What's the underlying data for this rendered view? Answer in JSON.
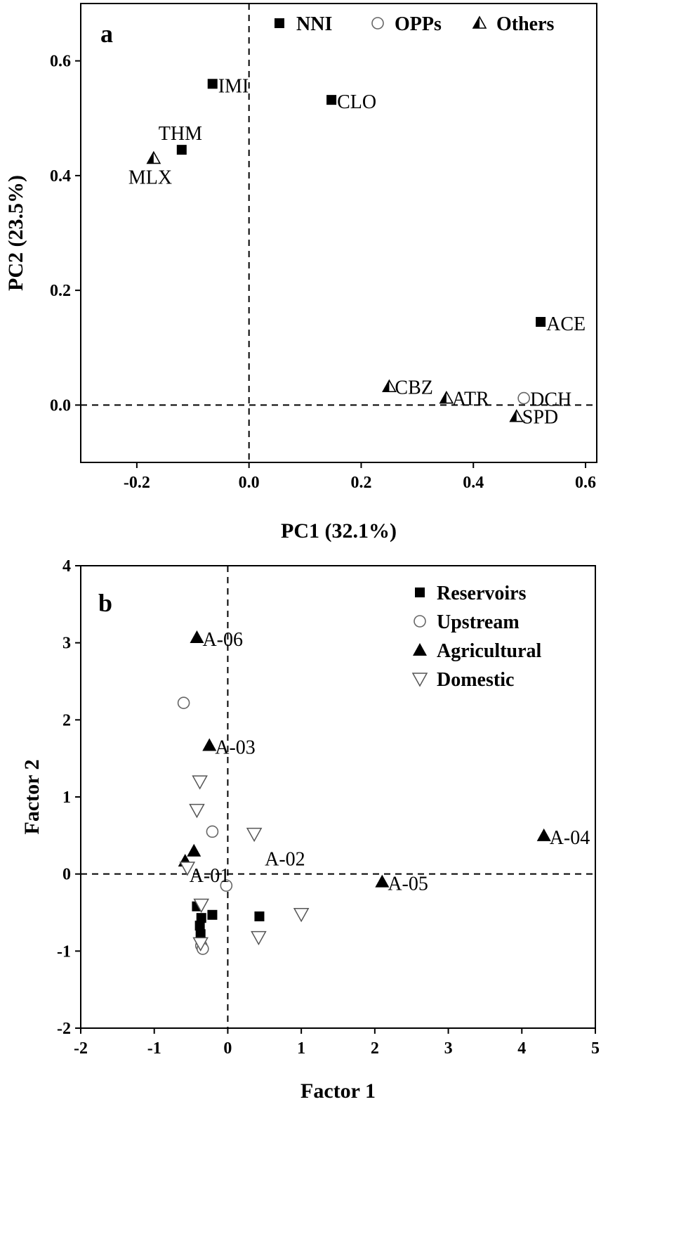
{
  "colors": {
    "filled": "#000000",
    "hollow_stroke": "#000000",
    "domestic_stroke": "#555555",
    "upstream_stroke": "#666666"
  },
  "chart_data": [
    {
      "type": "scatter",
      "panel_letter": "a",
      "xlabel": "PC1 (32.1%)",
      "ylabel": "PC2 (23.5%)",
      "xlim": [
        -0.3,
        0.62
      ],
      "ylim": [
        -0.1,
        0.7
      ],
      "xticks": [
        -0.2,
        0.0,
        0.2,
        0.4,
        0.6
      ],
      "xtick_labels": [
        "-0.2",
        "0.0",
        "0.2",
        "0.4",
        "0.6"
      ],
      "yticks": [
        0.0,
        0.2,
        0.4,
        0.6
      ],
      "ytick_labels": [
        "0.0",
        "0.2",
        "0.4",
        "0.6"
      ],
      "reference_lines": {
        "x": 0,
        "y": 0,
        "style": "dashed"
      },
      "legend_position": "top",
      "grid": false,
      "series": [
        {
          "name": "NNI",
          "marker": "square-filled",
          "points": [
            {
              "label": "IMI",
              "x": -0.065,
              "y": 0.56
            },
            {
              "label": "CLO",
              "x": 0.147,
              "y": 0.532
            },
            {
              "label": "THM",
              "x": -0.12,
              "y": 0.445
            },
            {
              "label": "ACE",
              "x": 0.52,
              "y": 0.145
            }
          ]
        },
        {
          "name": "OPPs",
          "marker": "circle-open",
          "points": [
            {
              "label": "DCH",
              "x": 0.49,
              "y": 0.012
            }
          ]
        },
        {
          "name": "Others",
          "marker": "triangle-half",
          "points": [
            {
              "label": "MLX",
              "x": -0.17,
              "y": 0.43
            },
            {
              "label": "CBZ",
              "x": 0.25,
              "y": 0.032
            },
            {
              "label": "ATR",
              "x": 0.352,
              "y": 0.012
            },
            {
              "label": "SPD",
              "x": 0.477,
              "y": -0.02
            }
          ]
        }
      ]
    },
    {
      "type": "scatter",
      "panel_letter": "b",
      "xlabel": "Factor 1",
      "ylabel": "Factor 2",
      "xlim": [
        -2,
        5
      ],
      "ylim": [
        -2,
        4
      ],
      "xticks": [
        -2,
        -1,
        0,
        1,
        2,
        3,
        4,
        5
      ],
      "xtick_labels": [
        "-2",
        "-1",
        "0",
        "1",
        "2",
        "3",
        "4",
        "5"
      ],
      "yticks": [
        -2,
        -1,
        0,
        1,
        2,
        3,
        4
      ],
      "ytick_labels": [
        "-2",
        "-1",
        "0",
        "1",
        "2",
        "3",
        "4"
      ],
      "reference_lines": {
        "x": 0,
        "y": 0,
        "style": "dashed"
      },
      "legend_position": "top-right",
      "grid": false,
      "series": [
        {
          "name": "Reservoirs",
          "marker": "square-filled",
          "points": [
            {
              "x": -0.42,
              "y": -0.42
            },
            {
              "x": -0.36,
              "y": -0.57
            },
            {
              "x": -0.21,
              "y": -0.53
            },
            {
              "x": -0.38,
              "y": -0.67
            },
            {
              "x": -0.37,
              "y": -0.78
            },
            {
              "x": 0.43,
              "y": -0.55
            }
          ]
        },
        {
          "name": "Upstream",
          "marker": "circle-open",
          "points": [
            {
              "x": -0.6,
              "y": 2.22
            },
            {
              "x": -0.21,
              "y": 0.55
            },
            {
              "x": -0.02,
              "y": -0.15
            },
            {
              "x": -0.36,
              "y": -0.93
            },
            {
              "x": -0.34,
              "y": -0.97
            }
          ]
        },
        {
          "name": "Agricultural",
          "marker": "triangle-filled",
          "points": [
            {
              "label": "A-06",
              "x": -0.42,
              "y": 3.07
            },
            {
              "label": "A-03",
              "x": -0.25,
              "y": 1.67
            },
            {
              "x": -0.46,
              "y": 0.3
            },
            {
              "label": "A-01",
              "x": -0.58,
              "y": 0.17
            },
            {
              "label": "A-05",
              "x": 2.1,
              "y": -0.1
            },
            {
              "label": "A-04",
              "x": 4.3,
              "y": 0.5
            }
          ]
        },
        {
          "name": "Domestic",
          "marker": "triangle-down-open",
          "points": [
            {
              "x": -0.38,
              "y": 1.2
            },
            {
              "x": -0.42,
              "y": 0.83
            },
            {
              "label": "A-02",
              "x": 0.36,
              "y": 0.52
            },
            {
              "x": -0.55,
              "y": 0.08
            },
            {
              "x": -0.36,
              "y": -0.4
            },
            {
              "x": -0.37,
              "y": -0.9
            },
            {
              "x": 0.42,
              "y": -0.82
            },
            {
              "x": 1.0,
              "y": -0.52
            }
          ]
        }
      ]
    }
  ]
}
